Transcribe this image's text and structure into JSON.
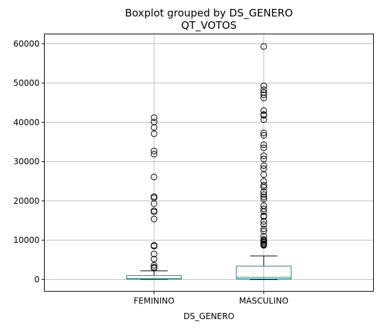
{
  "chart_data": {
    "type": "boxplot",
    "suptitle": "Boxplot grouped by DS_GENERO",
    "title": "QT_VOTOS",
    "xlabel": "DS_GENERO",
    "ylabel": "",
    "ylim": [
      -3000,
      62500
    ],
    "yticks": [
      0,
      10000,
      20000,
      30000,
      40000,
      50000,
      60000
    ],
    "ytick_labels": [
      "0",
      "10000",
      "20000",
      "30000",
      "40000",
      "50000",
      "60000"
    ],
    "grid": true,
    "categories": [
      "FEMININO",
      "MASCULINO"
    ],
    "boxes": [
      {
        "name": "FEMININO",
        "whisker_low": 0,
        "q1": 80,
        "median": 260,
        "q3": 1000,
        "whisker_high": 2200,
        "fliers": [
          41200,
          40100,
          38700,
          37100,
          32700,
          31900,
          26100,
          21100,
          20800,
          19300,
          17500,
          17200,
          15400,
          8700,
          8500,
          6500,
          5200,
          3600,
          3100,
          2900
        ]
      },
      {
        "name": "MASCULINO",
        "whisker_low": 0,
        "q1": 150,
        "median": 550,
        "q3": 3400,
        "whisker_high": 6000,
        "fliers": [
          59300,
          49300,
          48300,
          47600,
          47000,
          46200,
          42000,
          41800,
          40700,
          43000,
          37300,
          36700,
          34300,
          33500,
          31500,
          30700,
          29000,
          28200,
          26700,
          25000,
          24000,
          23500,
          22300,
          21600,
          21000,
          20500,
          18800,
          18000,
          17300,
          16200,
          16000,
          14800,
          14000,
          12900,
          12300,
          11000,
          10200,
          10000,
          9700,
          9400,
          9100,
          8900,
          8700
        ]
      }
    ],
    "colors": {
      "box": "#1f77b4",
      "median": "#2ca02c",
      "whisker": "#000000",
      "grid": "#b0b0b0",
      "flier_edge": "#000000"
    }
  }
}
